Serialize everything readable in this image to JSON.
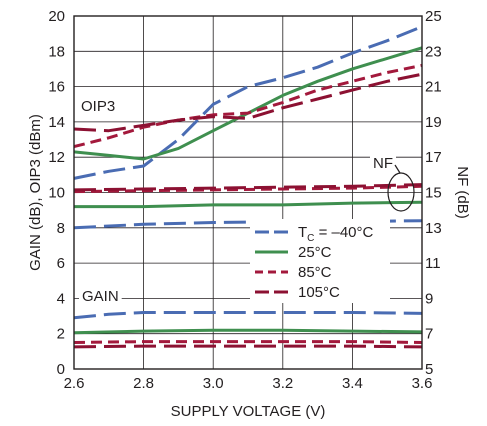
{
  "chart_data": {
    "type": "line",
    "xlabel": "SUPPLY VOLTAGE (V)",
    "ylabel": "GAIN (dB), OIP3 (dBm)",
    "ylabel_right": "NF (dB)",
    "xlim": [
      2.6,
      3.6
    ],
    "ylim": [
      0,
      20
    ],
    "ylim_right": [
      5,
      25
    ],
    "xticks": [
      "2.6",
      "2.8",
      "3.0",
      "3.2",
      "3.4",
      "3.6"
    ],
    "yticks": [
      "0",
      "2",
      "4",
      "6",
      "8",
      "10",
      "12",
      "14",
      "16",
      "18",
      "20"
    ],
    "yticks_right": [
      "5",
      "7",
      "9",
      "11",
      "13",
      "15",
      "17",
      "19",
      "21",
      "23",
      "25"
    ],
    "grid": true,
    "annotations": {
      "oip3": "OIP3",
      "gain": "GAIN",
      "nf": "NF"
    },
    "legend": {
      "position": "center-right",
      "entries": [
        "T_C = –40°C",
        "25°C",
        "85°C",
        "105°C"
      ]
    },
    "series": [
      {
        "name": "T_C = –40°C",
        "group": "OIP3",
        "axis": "left",
        "color": "#4a6cb3",
        "style": "long-dash",
        "x": [
          2.6,
          2.7,
          2.8,
          2.9,
          3.0,
          3.1,
          3.2,
          3.3,
          3.4,
          3.5,
          3.6
        ],
        "y": [
          10.8,
          11.2,
          11.5,
          13.0,
          15.0,
          16.0,
          16.5,
          17.1,
          17.9,
          18.6,
          19.4
        ]
      },
      {
        "name": "25°C",
        "group": "OIP3",
        "axis": "left",
        "color": "#3f8f4f",
        "style": "solid",
        "x": [
          2.6,
          2.7,
          2.8,
          2.9,
          3.0,
          3.1,
          3.2,
          3.3,
          3.4,
          3.5,
          3.6
        ],
        "y": [
          12.3,
          12.1,
          11.9,
          12.5,
          13.5,
          14.5,
          15.5,
          16.3,
          17.0,
          17.6,
          18.2
        ]
      },
      {
        "name": "85°C",
        "group": "OIP3",
        "axis": "left",
        "color": "#a3193c",
        "style": "short-dash",
        "x": [
          2.6,
          2.7,
          2.8,
          2.9,
          3.0,
          3.1,
          3.2,
          3.3,
          3.4,
          3.5,
          3.6
        ],
        "y": [
          12.6,
          13.1,
          13.7,
          14.1,
          14.4,
          14.5,
          15.1,
          15.8,
          16.3,
          16.8,
          17.2
        ]
      },
      {
        "name": "105°C",
        "group": "OIP3",
        "axis": "left",
        "color": "#8c1132",
        "style": "long-dash",
        "x": [
          2.6,
          2.7,
          2.8,
          2.9,
          3.0,
          3.1,
          3.2,
          3.3,
          3.4,
          3.5,
          3.6
        ],
        "y": [
          13.6,
          13.5,
          13.8,
          14.1,
          14.3,
          14.2,
          14.8,
          15.3,
          15.8,
          16.3,
          16.7
        ]
      },
      {
        "name": "T_C = –40°C",
        "group": "NF",
        "axis": "right",
        "color": "#4a6cb3",
        "style": "long-dash",
        "x": [
          2.6,
          2.8,
          3.0,
          3.2,
          3.4,
          3.6
        ],
        "y": [
          13.0,
          13.2,
          13.3,
          13.35,
          13.35,
          13.4
        ]
      },
      {
        "name": "25°C",
        "group": "NF",
        "axis": "right",
        "color": "#3f8f4f",
        "style": "solid",
        "x": [
          2.6,
          2.8,
          3.0,
          3.2,
          3.4,
          3.6
        ],
        "y": [
          14.2,
          14.2,
          14.3,
          14.3,
          14.4,
          14.45
        ]
      },
      {
        "name": "85°C",
        "group": "NF",
        "axis": "right",
        "color": "#a3193c",
        "style": "short-dash",
        "x": [
          2.6,
          2.8,
          3.0,
          3.2,
          3.4,
          3.6
        ],
        "y": [
          15.05,
          15.1,
          15.15,
          15.2,
          15.25,
          15.35
        ]
      },
      {
        "name": "105°C",
        "group": "NF",
        "axis": "right",
        "color": "#8c1132",
        "style": "long-dash",
        "x": [
          2.6,
          2.8,
          3.0,
          3.2,
          3.4,
          3.6
        ],
        "y": [
          15.15,
          15.2,
          15.25,
          15.3,
          15.35,
          15.45
        ]
      },
      {
        "name": "T_C = –40°C",
        "group": "GAIN",
        "axis": "left",
        "color": "#4a6cb3",
        "style": "long-dash",
        "x": [
          2.6,
          2.7,
          2.8,
          3.0,
          3.2,
          3.4,
          3.6
        ],
        "y": [
          2.9,
          3.1,
          3.2,
          3.2,
          3.2,
          3.2,
          3.15
        ]
      },
      {
        "name": "25°C",
        "group": "GAIN",
        "axis": "left",
        "color": "#3f8f4f",
        "style": "solid",
        "x": [
          2.6,
          2.8,
          3.0,
          3.2,
          3.4,
          3.6
        ],
        "y": [
          2.05,
          2.15,
          2.2,
          2.2,
          2.15,
          2.1
        ]
      },
      {
        "name": "85°C",
        "group": "GAIN",
        "axis": "left",
        "color": "#a3193c",
        "style": "short-dash",
        "x": [
          2.6,
          2.8,
          3.0,
          3.2,
          3.4,
          3.6
        ],
        "y": [
          1.5,
          1.55,
          1.55,
          1.55,
          1.55,
          1.5
        ]
      },
      {
        "name": "105°C",
        "group": "GAIN",
        "axis": "left",
        "color": "#8c1132",
        "style": "long-dash",
        "x": [
          2.6,
          2.8,
          3.0,
          3.2,
          3.4,
          3.6
        ],
        "y": [
          1.25,
          1.3,
          1.3,
          1.3,
          1.3,
          1.25
        ]
      }
    ]
  }
}
